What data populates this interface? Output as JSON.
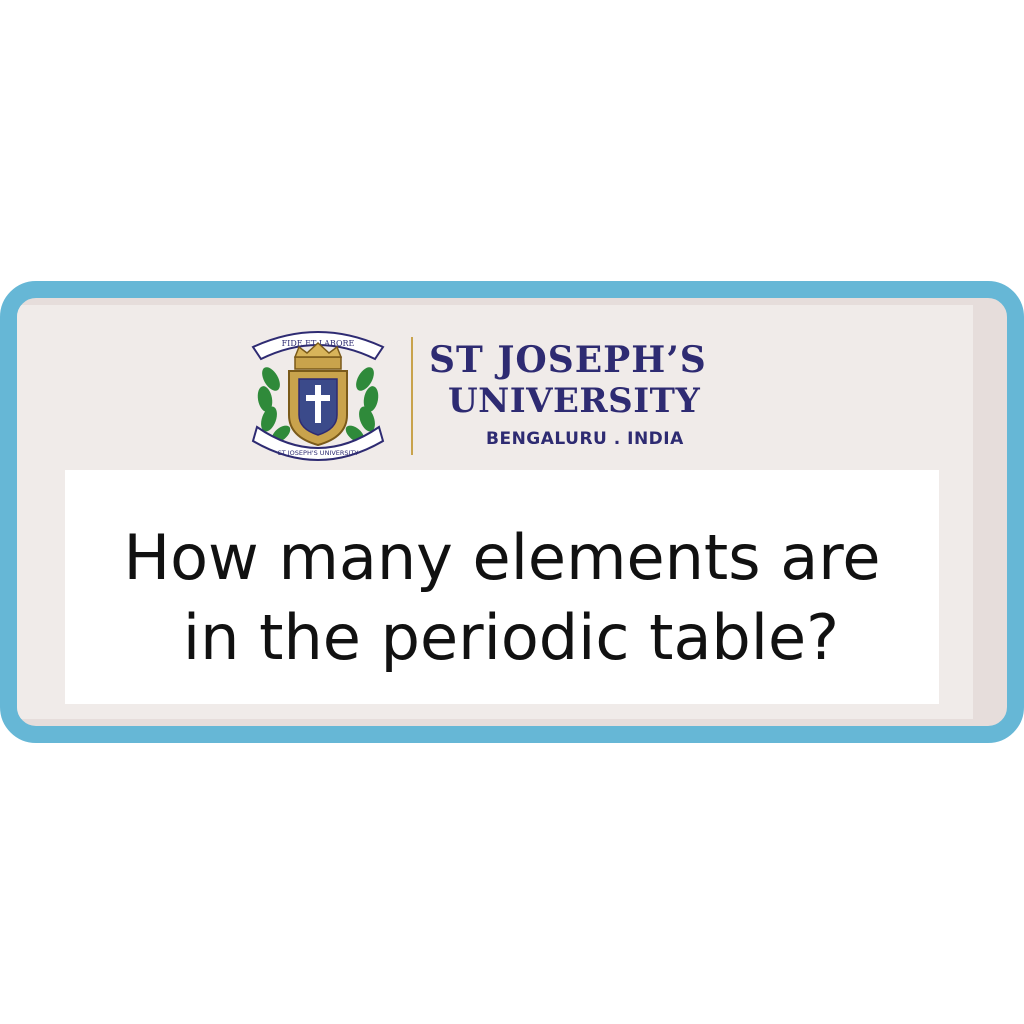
{
  "logo": {
    "name_line1": "ST JOSEPH’S",
    "name_line2": "UNIVERSITY",
    "name_line3": "BENGALURU . INDIA",
    "crest_motto": "FIDE ET LABORE",
    "crest_ribbon": "ST JOSEPH'S UNIVERSITY"
  },
  "question": {
    "line1": "How many elements are",
    "line2": "in the periodic table?"
  },
  "colors": {
    "border": "#66b7d6",
    "card_background": "#f0ebe9",
    "brand_text": "#2e2b72",
    "crest_gold": "#c9a34c"
  }
}
